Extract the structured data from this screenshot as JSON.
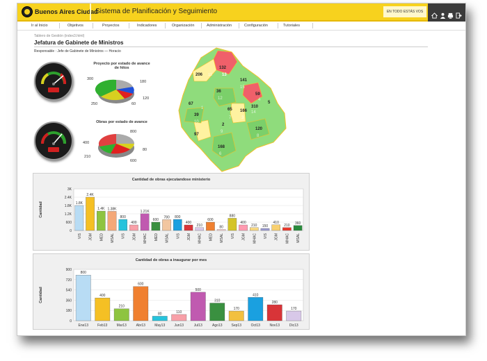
{
  "header": {
    "logo_text": "Buenos Aires Ciudad",
    "app_title": "Sistema de Planificación y Seguimiento",
    "user_text": "EN TODO ESTÁS VOS",
    "icons": [
      "home-icon",
      "user-icon",
      "print-icon",
      "logout-icon"
    ]
  },
  "nav": {
    "items": [
      "Ir al Inicio",
      "Objetivos",
      "Proyectos",
      "Indicadores",
      "Organización",
      "Administración",
      "Configuración",
      "Tutoriales"
    ]
  },
  "page": {
    "breadcrumb": "Tablero de Gestión (index3.html)",
    "title": "Jefatura de Gabinete de Ministros",
    "responsable": "Responsable : Jefe de Gabinete de Ministros — Horacio"
  },
  "pie1": {
    "title_line1": "Proyecto por estado de avance",
    "title_line2": "de hitos",
    "labels": [
      "300",
      "180",
      "120",
      "60",
      "250"
    ]
  },
  "pie2": {
    "title": "Obras por estado de avance",
    "labels": [
      "800",
      "400",
      "80",
      "210",
      "600"
    ]
  },
  "map": {
    "labels": [
      "206",
      "132",
      "13",
      "141",
      "36",
      "59",
      "5",
      "67",
      "65",
      "166",
      "310",
      "39",
      "2",
      "120",
      "97",
      "168",
      "11",
      "15",
      "4",
      "1",
      "12",
      "7",
      "3",
      "8",
      "10",
      "9",
      "14",
      "6"
    ]
  },
  "colors": {
    "yellow": "#f7d21e",
    "green": "#8fdc7c",
    "red": "#f0606a",
    "lightyellow": "#fff2a0"
  },
  "chart_data": [
    {
      "type": "bar",
      "title": "Cantidad de obras ejecutandose ministerio",
      "ylabel": "Cantidad",
      "ylim": [
        0,
        3000
      ],
      "yticks": [
        "0",
        "600",
        "1.2K",
        "1.8K",
        "2.4K",
        "3K"
      ],
      "categories": [
        "VIS",
        "JGM",
        "MED",
        "MSAL",
        "VIS",
        "JGM",
        "MHAC",
        "MED",
        "MSAL",
        "VIS",
        "JGM",
        "MHAC",
        "MED",
        "MSAL",
        "VIS",
        "JGM",
        "MHAC",
        "VIS",
        "JGM",
        "MHAC",
        "MSAL"
      ],
      "values": [
        1800,
        2400,
        1400,
        1380,
        800,
        400,
        1210,
        600,
        780,
        800,
        400,
        210,
        600,
        80,
        880,
        400,
        210,
        150,
        410,
        210,
        360
      ],
      "value_labels": [
        "1.8K",
        "2.4K",
        "1.4K",
        "1.38K",
        "800",
        "400",
        "1.21K",
        "600",
        "780",
        "800",
        "400",
        "210",
        "600",
        "80",
        "880",
        "400",
        "210",
        "150",
        "410",
        "210",
        "360"
      ],
      "colors": [
        "#b8dcf4",
        "#f5c024",
        "#8ec440",
        "#f4a878",
        "#26c3dc",
        "#f8a0a8",
        "#c05ab0",
        "#3a9040",
        "#f2c6a0",
        "#1aa0e0",
        "#d83438",
        "#d8c8e8",
        "#f08030",
        "#ffd8d8",
        "#d4c428",
        "#ff9ab0",
        "#f8d880",
        "#9a9ad0",
        "#f8d070",
        "#e8382c",
        "#2a8a3c"
      ]
    },
    {
      "type": "bar",
      "title": "Cantidad de obras a inaugurar por mes",
      "ylabel": "Cantidad",
      "ylim": [
        0,
        900
      ],
      "yticks": [
        "0",
        "180",
        "360",
        "540",
        "720",
        "900"
      ],
      "categories": [
        "Ene13",
        "Feb13",
        "Mar13",
        "Abr13",
        "May13",
        "Jun13",
        "Jul13",
        "Ago13",
        "Sep13",
        "Oct13",
        "Nov13",
        "Dic13"
      ],
      "values": [
        800,
        400,
        210,
        600,
        80,
        110,
        500,
        310,
        170,
        410,
        280,
        170
      ],
      "colors": [
        "#b8dcf4",
        "#f5c024",
        "#8ec440",
        "#f08030",
        "#26c3dc",
        "#f8a0a8",
        "#c05ab0",
        "#3a9040",
        "#f2c040",
        "#1aa0e0",
        "#d83438",
        "#d8c8e8"
      ]
    }
  ]
}
